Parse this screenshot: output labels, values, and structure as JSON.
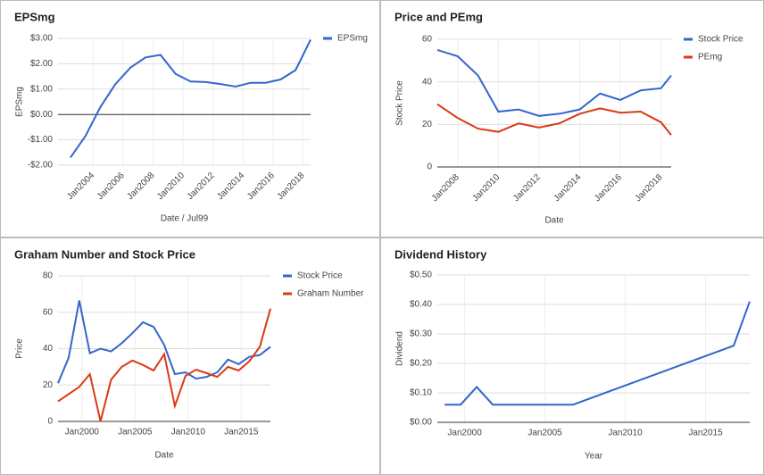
{
  "chart_data": [
    {
      "type": "line",
      "title": "EPSmg",
      "x_label": "Date / Jul99",
      "y_label": "EPSmg",
      "x": [
        2002.5,
        2003.5,
        2004.5,
        2005.5,
        2006.5,
        2007.5,
        2008.5,
        2009.5,
        2010.5,
        2011.5,
        2012.5,
        2013.5,
        2014.5,
        2015.5,
        2016.5,
        2017.5,
        2018.5
      ],
      "series": [
        {
          "name": "EPSmg",
          "color": "#3366cc",
          "values": [
            -1.7,
            -0.85,
            0.3,
            1.2,
            1.85,
            2.25,
            2.35,
            1.6,
            1.3,
            1.28,
            1.2,
            1.1,
            1.25,
            1.25,
            1.38,
            1.75,
            2.95
          ]
        }
      ],
      "xlim": [
        2001.67,
        2018.5
      ],
      "xticks": [
        {
          "value": 2004,
          "label": "Jan2004"
        },
        {
          "value": 2006,
          "label": "Jan2006"
        },
        {
          "value": 2008,
          "label": "Jan2008"
        },
        {
          "value": 2010,
          "label": "Jan2010"
        },
        {
          "value": 2012,
          "label": "Jan2012"
        },
        {
          "value": 2014,
          "label": "Jan2014"
        },
        {
          "value": 2016,
          "label": "Jan2016"
        },
        {
          "value": 2018,
          "label": "Jan2018"
        }
      ],
      "xtick_rotation": -45,
      "ylim": [
        -2,
        3
      ],
      "yticks": [
        {
          "value": -2,
          "label": "-$2.00"
        },
        {
          "value": -1,
          "label": "-$1.00"
        },
        {
          "value": 0,
          "label": "$0.00"
        },
        {
          "value": 1,
          "label": "$1.00"
        },
        {
          "value": 2,
          "label": "$2.00"
        },
        {
          "value": 3,
          "label": "$3.00"
        }
      ],
      "grid": true,
      "legend": "right"
    },
    {
      "type": "line",
      "title": "Price and PEmg",
      "x_label": "Date",
      "y_label": "Stock Price",
      "x": [
        2007,
        2008,
        2009,
        2010,
        2011,
        2012,
        2013,
        2014,
        2015,
        2016,
        2017,
        2018,
        2018.5
      ],
      "series": [
        {
          "name": "Stock Price",
          "color": "#3366cc",
          "values": [
            55,
            52,
            43,
            26,
            27,
            24,
            25,
            27,
            34.5,
            31.5,
            36,
            37,
            43
          ]
        },
        {
          "name": "PEmg",
          "color": "#dc3912",
          "values": [
            29.5,
            23,
            18,
            16.5,
            20.5,
            18.5,
            20.5,
            25,
            27.5,
            25.5,
            26,
            21,
            15
          ]
        }
      ],
      "xlim": [
        2007,
        2018.5
      ],
      "xticks": [
        {
          "value": 2008,
          "label": "Jan2008"
        },
        {
          "value": 2010,
          "label": "Jan2010"
        },
        {
          "value": 2012,
          "label": "Jan2012"
        },
        {
          "value": 2014,
          "label": "Jan2014"
        },
        {
          "value": 2016,
          "label": "Jan2016"
        },
        {
          "value": 2018,
          "label": "Jan2018"
        }
      ],
      "xtick_rotation": -45,
      "ylim": [
        0,
        60
      ],
      "yticks": [
        0,
        20,
        40,
        60
      ],
      "grid": true,
      "legend": "right"
    },
    {
      "type": "line",
      "title": "Graham Number and Stock Price",
      "x_label": "Date",
      "y_label": "Price",
      "x": [
        1997.75,
        1998.75,
        1999.75,
        2000.75,
        2001.75,
        2002.75,
        2003.75,
        2004.75,
        2005.75,
        2006.75,
        2007.75,
        2008.75,
        2009.75,
        2010.75,
        2011.75,
        2012.75,
        2013.75,
        2014.75,
        2015.75,
        2016.75,
        2017.75
      ],
      "series": [
        {
          "name": "Stock Price",
          "color": "#3366cc",
          "values": [
            21,
            35,
            66.5,
            37.5,
            40,
            38.5,
            43,
            48.5,
            54.5,
            52,
            42,
            26,
            27,
            23.5,
            24.5,
            27,
            34,
            31.5,
            35.5,
            36.5,
            41
          ]
        },
        {
          "name": "Graham Number",
          "color": "#dc3912",
          "values": [
            11,
            15,
            19,
            26,
            0,
            23,
            30,
            33.5,
            31,
            28,
            37,
            8.5,
            25,
            28.5,
            26.5,
            24.5,
            30,
            28,
            33,
            41,
            62
          ]
        }
      ],
      "xlim": [
        1997.75,
        2017.75
      ],
      "xticks": [
        {
          "value": 2000,
          "label": "Jan2000"
        },
        {
          "value": 2005,
          "label": "Jan2005"
        },
        {
          "value": 2010,
          "label": "Jan2010"
        },
        {
          "value": 2015,
          "label": "Jan2015"
        }
      ],
      "ylim": [
        0,
        80
      ],
      "yticks": [
        0,
        20,
        40,
        60,
        80
      ],
      "grid": true,
      "legend": "right"
    },
    {
      "type": "line",
      "title": "Dividend History",
      "x_label": "Year",
      "y_label": "Dividend",
      "x": [
        1998.75,
        1999.75,
        2000.75,
        2001.75,
        2006.75,
        2016.75,
        2017.75
      ],
      "series": [
        {
          "color": "#3366cc",
          "values": [
            0.06,
            0.06,
            0.12,
            0.06,
            0.06,
            0.26,
            0.41
          ]
        }
      ],
      "xlim": [
        1998.3,
        2017.75
      ],
      "xticks": [
        {
          "value": 2000,
          "label": "Jan2000"
        },
        {
          "value": 2005,
          "label": "Jan2005"
        },
        {
          "value": 2010,
          "label": "Jan2010"
        },
        {
          "value": 2015,
          "label": "Jan2015"
        }
      ],
      "ylim": [
        0,
        0.5
      ],
      "yticks": [
        {
          "value": 0,
          "label": "$0.00"
        },
        {
          "value": 0.1,
          "label": "$0.10"
        },
        {
          "value": 0.2,
          "label": "$0.20"
        },
        {
          "value": 0.3,
          "label": "$0.30"
        },
        {
          "value": 0.4,
          "label": "$0.40"
        },
        {
          "value": 0.5,
          "label": "$0.50"
        }
      ],
      "grid": true
    }
  ]
}
